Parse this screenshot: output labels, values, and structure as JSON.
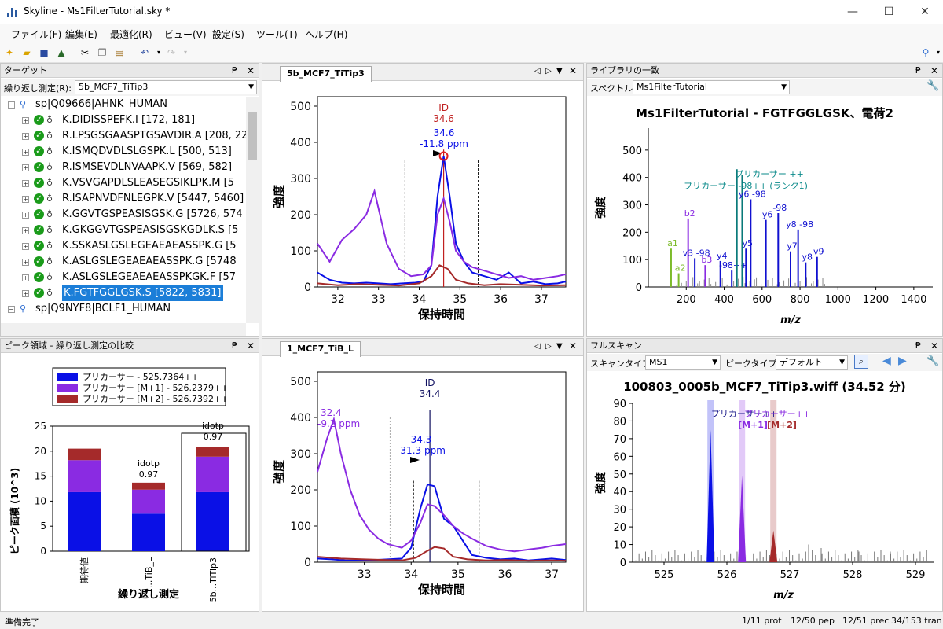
{
  "window": {
    "title": "Skyline - Ms1FilterTutorial.sky *"
  },
  "menu": [
    "ファイル(F)",
    "編集(E)",
    "最適化(R)",
    "ビュー(V)",
    "設定(S)",
    "ツール(T)",
    "ヘルプ(H)"
  ],
  "targets": {
    "title": "ターゲット",
    "replicate_label": "繰り返し測定(R):",
    "replicate_value": "5b_MCF7_TiTip3",
    "protein1": "sp|Q09666|AHNK_HUMAN",
    "peptides": [
      "K.DIDISSPEFK.I [172, 181]",
      "R.LPSGSGAASPTGSAVDIR.A [208, 225]",
      "K.ISMQDVDLSLGSPK.L [500, 513]",
      "R.ISMSEVDLNVAAPK.V [569, 582]",
      "K.VSVGAPDLSLEASEGSIKLPK.M [5",
      "R.ISAPNVDFNLEGPK.V [5447, 5460]",
      "K.GGVTGSPEASISGSK.G [5726, 574",
      "K.GKGGVTGSPEASISGSKGDLK.S [5",
      "K.SSKASLGSLEGEAEAEASSPK.G [5",
      "K.ASLGSLEGEAEAEASSPK.G [5748",
      "K.ASLGSLEGEAEAEASSPKGK.F [57",
      "K.FGTFGGLGSK.S [5822, 5831]"
    ],
    "protein2": "sp|Q9NYF8|BCLF1_HUMAN"
  },
  "peak_areas": {
    "title": "ピーク領域 - 繰り返し測定の比較",
    "legend": [
      "プリカーサー - 525.7364++",
      "プリカーサー [M+1] - 526.2379++",
      "プリカーサー [M+2] - 526.7392++"
    ],
    "ylabel": "ピーク面積 (10^3)",
    "xlabel": "繰り返し測定",
    "bar_labels": [
      "idotp\n0.97",
      "idotp\n0.97"
    ],
    "idotp1": "idotp",
    "idotp1_val": "0.97",
    "idotp2": "idotp",
    "idotp2_val": "0.97"
  },
  "chrom_top": {
    "tab": "5b_MCF7_TiTip3",
    "id_label": "ID",
    "id_val": "34.6",
    "peak_rt": "34.6",
    "peak_ppm": "-11.8 ppm",
    "ylabel": "強度",
    "xlabel": "保持時間"
  },
  "chrom_bottom": {
    "tab": "1_MCF7_TiB_L",
    "id_label": "ID",
    "id_val": "34.4",
    "peak_rt": "34.3",
    "peak_ppm": "-31.3 ppm",
    "left_rt": "32.4",
    "left_ppm": "-9.2 ppm",
    "ylabel": "強度",
    "xlabel": "保持時間"
  },
  "library": {
    "title": "ライブラリの一致",
    "spectrum_label": "スペクトル:",
    "spectrum_value": "Ms1FilterTutorial",
    "chart_title": "Ms1FilterTutorial - FGTFGGLGSK、電荷2",
    "ylabel": "強度",
    "xlabel": "m/z",
    "prec1": "プリカーサー ++",
    "prec2": "プリカーサー -98++ (ランク1)"
  },
  "fullscan": {
    "title": "フルスキャン",
    "scan_type_label": "スキャンタイプ:",
    "scan_type_value": "MS1",
    "peak_type_label": "ピークタイプ:",
    "peak_type_value": "デフォルト",
    "chart_title": "100803_0005b_MCF7_TiTip3.wiff (34.52 分)",
    "ylabel": "強度",
    "xlabel": "m/z",
    "prec_label": "プリカーサー++",
    "m1": "[M+1]",
    "m2": "[M+2]"
  },
  "status": {
    "left": "準備完了",
    "prot": "1/11 prot",
    "pep": "12/50 pep",
    "prec": "12/51 prec",
    "tran": "34/153 tran"
  },
  "colors": {
    "precursor": "#0a10e6",
    "m1": "#8a2be2",
    "m2": "#a52a2a",
    "selection": "#1b7ed8"
  },
  "chart_data": [
    {
      "type": "bar",
      "categories": [
        "期待値",
        "1...TiB_L",
        "5b...TiTip3"
      ],
      "series": [
        {
          "name": "プリカーサー - 525.7364++",
          "values": [
            11.8,
            7.5,
            11.8
          ]
        },
        {
          "name": "プリカーサー [M+1] - 526.2379++",
          "values": [
            6.4,
            4.8,
            7.1
          ]
        },
        {
          "name": "プリカーサー [M+2] - 526.7392++",
          "values": [
            2.3,
            1.4,
            1.9
          ]
        }
      ],
      "ylim": [
        0,
        25
      ],
      "yticks": [
        0,
        5,
        10,
        15,
        20,
        25
      ]
    },
    {
      "type": "line",
      "xlim": [
        31.5,
        37.6
      ],
      "ylim": [
        0,
        500
      ],
      "xticks": [
        32,
        33,
        34,
        35,
        36,
        37
      ],
      "yticks": [
        0,
        100,
        200,
        300,
        400,
        500
      ],
      "series": [
        {
          "name": "プリカーサー",
          "x": [
            31.5,
            31.8,
            32.1,
            32.4,
            32.7,
            33.0,
            33.3,
            33.6,
            33.9,
            34.1,
            34.3,
            34.45,
            34.6,
            34.75,
            34.9,
            35.1,
            35.3,
            35.6,
            35.9,
            36.2,
            36.5,
            36.8,
            37.1,
            37.4,
            37.6
          ],
          "y": [
            40,
            20,
            12,
            10,
            12,
            10,
            8,
            10,
            12,
            15,
            60,
            250,
            362,
            250,
            120,
            70,
            40,
            30,
            20,
            40,
            10,
            15,
            8,
            10,
            15
          ]
        },
        {
          "name": "[M+1]",
          "x": [
            31.5,
            31.8,
            32.1,
            32.4,
            32.7,
            32.9,
            33.2,
            33.5,
            33.8,
            34.1,
            34.3,
            34.45,
            34.6,
            34.75,
            34.9,
            35.1,
            35.3,
            35.6,
            35.9,
            36.2,
            36.5,
            36.8,
            37.1,
            37.4,
            37.6
          ],
          "y": [
            120,
            70,
            130,
            160,
            200,
            265,
            120,
            50,
            30,
            35,
            60,
            200,
            245,
            180,
            100,
            70,
            55,
            45,
            35,
            25,
            30,
            20,
            25,
            30,
            35
          ]
        },
        {
          "name": "[M+2]",
          "x": [
            31.5,
            32.0,
            32.5,
            33.0,
            33.5,
            34.0,
            34.3,
            34.5,
            34.7,
            34.9,
            35.2,
            35.6,
            36.0,
            36.5,
            37.0,
            37.6
          ],
          "y": [
            10,
            5,
            8,
            6,
            4,
            10,
            30,
            60,
            50,
            20,
            10,
            5,
            8,
            6,
            4,
            5
          ]
        }
      ]
    },
    {
      "type": "line",
      "xlim": [
        32.0,
        37.3
      ],
      "ylim": [
        0,
        500
      ],
      "xticks": [
        33,
        34,
        35,
        36,
        37
      ],
      "yticks": [
        0,
        100,
        200,
        300,
        400,
        500
      ],
      "series": [
        {
          "name": "プリカーサー",
          "x": [
            32.0,
            32.3,
            32.6,
            32.9,
            33.2,
            33.5,
            33.8,
            34.0,
            34.2,
            34.35,
            34.5,
            34.7,
            34.9,
            35.1,
            35.3,
            35.6,
            35.9,
            36.2,
            36.5,
            36.8,
            37.0,
            37.3
          ],
          "y": [
            10,
            8,
            5,
            5,
            6,
            8,
            10,
            40,
            150,
            215,
            210,
            120,
            100,
            60,
            20,
            12,
            8,
            10,
            5,
            8,
            10,
            6
          ]
        },
        {
          "name": "[M+1]",
          "x": [
            32.0,
            32.2,
            32.35,
            32.5,
            32.7,
            32.9,
            33.1,
            33.3,
            33.5,
            33.8,
            34.0,
            34.2,
            34.35,
            34.5,
            34.7,
            34.9,
            35.1,
            35.3,
            35.6,
            35.9,
            36.2,
            36.5,
            36.8,
            37.0,
            37.3
          ],
          "y": [
            250,
            340,
            395,
            300,
            200,
            130,
            90,
            65,
            50,
            40,
            60,
            110,
            160,
            155,
            130,
            100,
            80,
            65,
            45,
            35,
            30,
            35,
            40,
            45,
            50
          ]
        },
        {
          "name": "[M+2]",
          "x": [
            32.0,
            32.5,
            33.0,
            33.5,
            33.8,
            34.1,
            34.3,
            34.5,
            34.7,
            34.9,
            35.2,
            35.6,
            36.0,
            36.5,
            37.0,
            37.3
          ],
          "y": [
            15,
            10,
            8,
            6,
            5,
            12,
            28,
            42,
            38,
            15,
            8,
            5,
            6,
            4,
            5,
            4
          ]
        }
      ]
    },
    {
      "type": "bar",
      "xlim": [
        0,
        1500
      ],
      "ylim": [
        0,
        580
      ],
      "xticks": [
        200,
        400,
        600,
        800,
        1000,
        1200,
        1400
      ],
      "yticks": [
        0,
        100,
        200,
        300,
        400,
        500
      ],
      "peaks": [
        {
          "mz": 120,
          "intensity": 140,
          "label": "a1",
          "color": "#7cbb2a"
        },
        {
          "mz": 160,
          "intensity": 50,
          "label": "a2",
          "color": "#7cbb2a"
        },
        {
          "mz": 210,
          "intensity": 250,
          "label": "b2",
          "color": "#8a2be2"
        },
        {
          "mz": 245,
          "intensity": 105,
          "label": "v3 -98",
          "color": "#1010d0"
        },
        {
          "mz": 300,
          "intensity": 80,
          "label": "b3",
          "color": "#8a2be2"
        },
        {
          "mz": 380,
          "intensity": 95,
          "label": "y4",
          "color": "#1010d0"
        },
        {
          "mz": 440,
          "intensity": 60,
          "label": "-98++",
          "color": "#1010d0"
        },
        {
          "mz": 467,
          "intensity": 430,
          "label": "",
          "color": "#0a7a7a"
        },
        {
          "mz": 495,
          "intensity": 410,
          "label": "",
          "color": "#0a7a7a"
        },
        {
          "mz": 515,
          "intensity": 140,
          "label": "y5",
          "color": "#1010d0"
        },
        {
          "mz": 540,
          "intensity": 320,
          "label": "y6 -98",
          "color": "#1010d0"
        },
        {
          "mz": 620,
          "intensity": 245,
          "label": "y6",
          "color": "#1010d0"
        },
        {
          "mz": 685,
          "intensity": 270,
          "label": "-98",
          "color": "#1010d0"
        },
        {
          "mz": 750,
          "intensity": 130,
          "label": "y7",
          "color": "#1010d0"
        },
        {
          "mz": 790,
          "intensity": 210,
          "label": "y8 -98",
          "color": "#1010d0"
        },
        {
          "mz": 830,
          "intensity": 90,
          "label": "y8",
          "color": "#1010d0"
        },
        {
          "mz": 890,
          "intensity": 110,
          "label": "v9",
          "color": "#1010d0"
        }
      ]
    },
    {
      "type": "bar",
      "xlim": [
        524.5,
        529.3
      ],
      "ylim": [
        0,
        90
      ],
      "xticks": [
        525,
        526,
        527,
        528,
        529
      ],
      "yticks": [
        0,
        10,
        20,
        30,
        40,
        50,
        60,
        70,
        80,
        90
      ],
      "peaks": [
        {
          "mz": 525.74,
          "intensity": 75,
          "color": "#0a10e6"
        },
        {
          "mz": 526.24,
          "intensity": 49,
          "color": "#8a2be2"
        },
        {
          "mz": 526.74,
          "intensity": 18,
          "color": "#a52a2a"
        }
      ]
    }
  ]
}
